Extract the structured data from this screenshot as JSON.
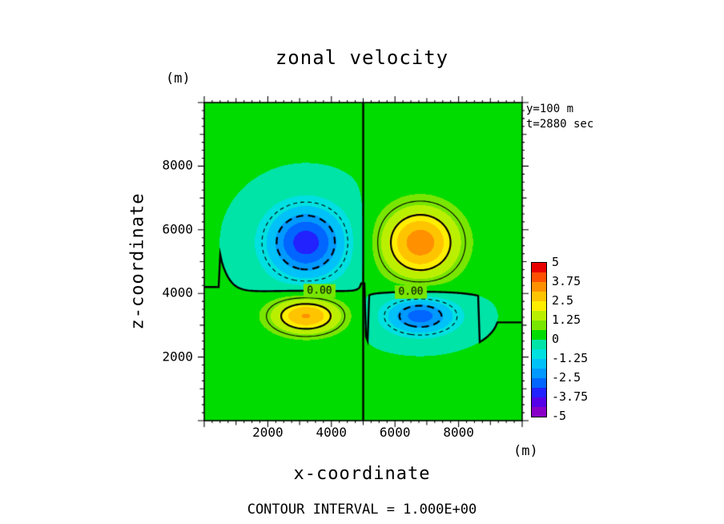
{
  "title": "zonal velocity",
  "annotations": {
    "slice": "y=100 m",
    "time": "t=2880 sec",
    "contour_interval": "CONTOUR INTERVAL = 1.000E+00",
    "zero_contour_label": "0.00"
  },
  "axes": {
    "x_title": "x-coordinate",
    "z_title": "z-coordinate",
    "x_unit": "(m)",
    "z_unit": "(m)",
    "x_ticks": [
      "2000",
      "4000",
      "6000",
      "8000"
    ],
    "z_ticks": [
      "2000",
      "4000",
      "6000",
      "8000"
    ],
    "x_range": [
      0,
      10000
    ],
    "z_range": [
      0,
      10000
    ]
  },
  "colorbar": {
    "min": -5,
    "max": 5,
    "tick_labels": [
      "5",
      "3.75",
      "2.5",
      "1.25",
      "0",
      "-1.25",
      "-2.5",
      "-3.75",
      "-5"
    ],
    "cell_colors": [
      "#8800c8",
      "#5500e8",
      "#2222ff",
      "#0066ff",
      "#0099ff",
      "#00c2f8",
      "#00e0e0",
      "#00e4a8",
      "#00dc00",
      "#78e600",
      "#baf000",
      "#ffee00",
      "#ffc400",
      "#ff9000",
      "#ff5000",
      "#e80000"
    ]
  },
  "chart_data": {
    "type": "heatmap",
    "subtype": "filled_contour",
    "title": "zonal velocity",
    "xlabel": "x-coordinate (m)",
    "ylabel": "z-coordinate (m)",
    "x_range": [
      0,
      10000
    ],
    "z_range": [
      0,
      10000
    ],
    "value_range": [
      -5,
      5
    ],
    "fill_interval": 0.625,
    "contour_interval": 1.0,
    "contour_levels_drawn": [
      -2,
      -1,
      0,
      1,
      2
    ],
    "negative_contour_style": "dashed",
    "slice": {
      "y_m": 100,
      "t_sec": 2880
    },
    "background_value": 0.03,
    "field_model": {
      "type": "sum_of_gaussians",
      "components": [
        {
          "x0": 3200,
          "z0": 5600,
          "sx": 1250,
          "sz": 1150,
          "amp": -3.5
        },
        {
          "x0": 6800,
          "z0": 5600,
          "sx": 1250,
          "sz": 1150,
          "amp": 3.5
        },
        {
          "x0": 3200,
          "z0": 3300,
          "sx": 1150,
          "sz": 600,
          "amp": 3.2
        },
        {
          "x0": 6800,
          "z0": 3300,
          "sx": 1150,
          "sz": 600,
          "amp": -2.9
        }
      ]
    },
    "extrema": [
      {
        "x": 3200,
        "z": 5600,
        "value": -3.5
      },
      {
        "x": 6800,
        "z": 5600,
        "value": 3.5
      },
      {
        "x": 3200,
        "z": 3300,
        "value": 3.2
      },
      {
        "x": 6800,
        "z": 3300,
        "value": -2.9
      }
    ],
    "zero_line": {
      "vertical_x": 5000,
      "horizontal_z_approx": 4200
    },
    "zero_line_labels": [
      {
        "x": 3650
      },
      {
        "x": 6500
      }
    ]
  }
}
